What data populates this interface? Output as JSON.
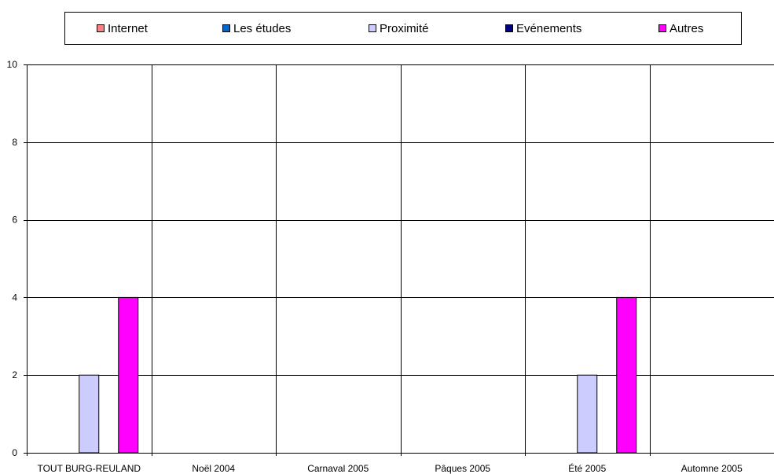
{
  "chart_data": {
    "type": "bar",
    "categories": [
      "TOUT BURG-REULAND",
      "Noël 2004",
      "Carnaval 2005",
      "Pâques 2005",
      "Été 2005",
      "Automne 2005"
    ],
    "series": [
      {
        "name": "Internet",
        "color": "#ff8080",
        "values": [
          0,
          0,
          0,
          0,
          0,
          0
        ]
      },
      {
        "name": "Les études",
        "color": "#0066cc",
        "values": [
          0,
          0,
          0,
          0,
          0,
          0
        ]
      },
      {
        "name": "Proximité",
        "color": "#ccccff",
        "values": [
          2,
          0,
          0,
          0,
          2,
          0
        ]
      },
      {
        "name": "Evénements",
        "color": "#000080",
        "values": [
          0,
          0,
          0,
          0,
          0,
          0
        ]
      },
      {
        "name": "Autres",
        "color": "#ff00ff",
        "values": [
          4,
          0,
          0,
          0,
          4,
          0
        ]
      }
    ],
    "ylim": [
      0,
      10
    ],
    "yticks": [
      0,
      2,
      4,
      6,
      8,
      10
    ],
    "grid": true,
    "legend_position": "top"
  }
}
